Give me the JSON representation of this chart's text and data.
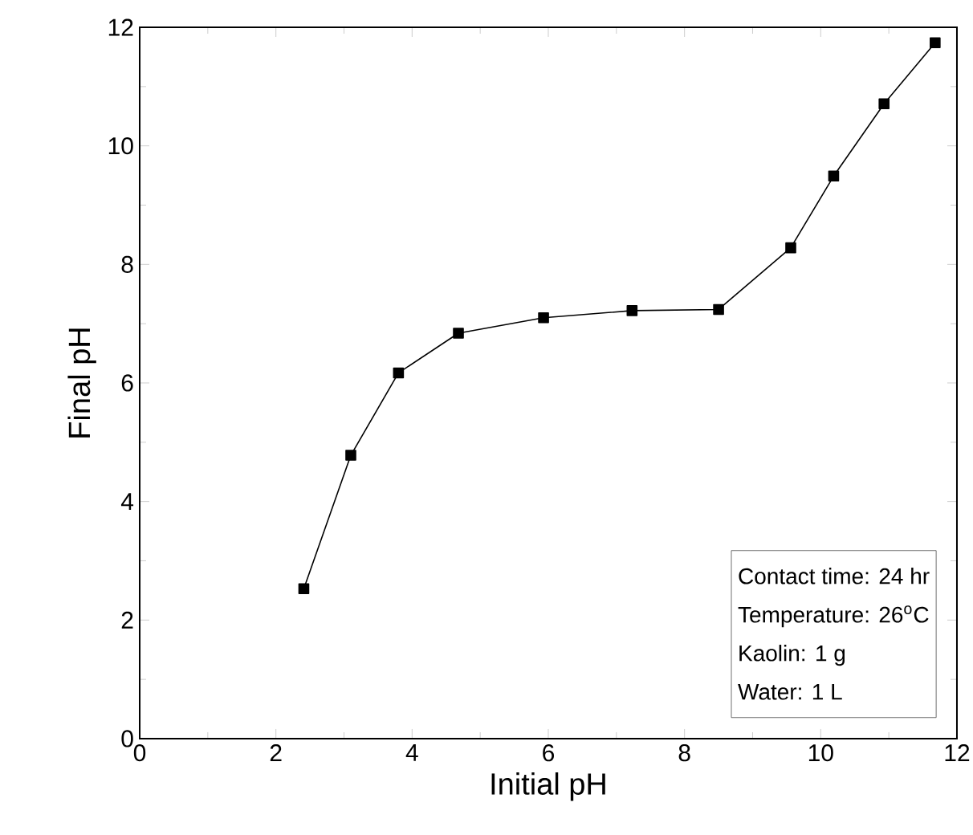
{
  "chart_data": {
    "type": "line",
    "xlabel": "Initial pH",
    "ylabel": "Final pH",
    "x": [
      2.41,
      3.1,
      3.8,
      4.68,
      5.93,
      7.23,
      8.5,
      9.56,
      10.19,
      10.93,
      11.68
    ],
    "values": [
      2.53,
      4.78,
      6.17,
      6.84,
      7.1,
      7.22,
      7.24,
      8.28,
      9.49,
      10.71,
      11.74
    ],
    "color": "#000000",
    "marker": "square",
    "line_style": "solid",
    "xlim": [
      0,
      12
    ],
    "ylim": [
      0,
      12
    ],
    "xticks": [
      0,
      2,
      4,
      6,
      8,
      10,
      12
    ],
    "yticks": [
      0,
      2,
      4,
      6,
      8,
      10,
      12
    ],
    "annotations": [
      "Contact time: 24 hr",
      "Temperature: 26$^{o}$C",
      "Kaolin: 1 g",
      "Water:  1 L"
    ]
  }
}
